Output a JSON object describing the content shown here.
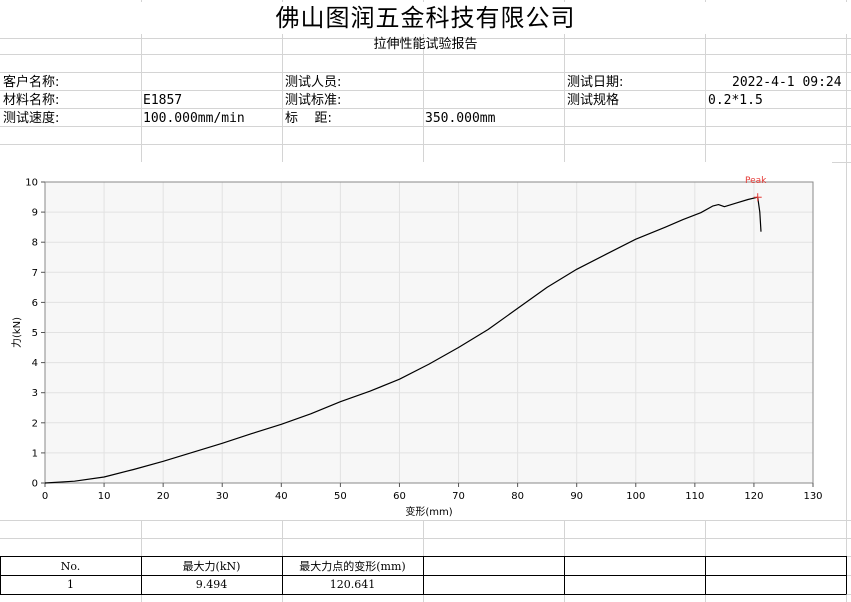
{
  "report": {
    "company_title": "佛山图润五金科技有限公司",
    "report_title": "拉伸性能试验报告"
  },
  "info": {
    "customer_label": "客户名称:",
    "customer_value": "",
    "tester_label": "测试人员:",
    "tester_value": "",
    "date_label": "测试日期:",
    "date_value": "2022-4-1 09:24",
    "material_label": "材料名称:",
    "material_value": "E1857",
    "standard_label": "测试标准:",
    "standard_value": "",
    "spec_label": "测试规格",
    "spec_value": "0.2*1.5",
    "speed_label": "测试速度:",
    "speed_value": "100.000mm/min",
    "gauge_label": "标    距:",
    "gauge_value": "350.000mm"
  },
  "chart_data": {
    "type": "line",
    "xlabel": "变形(mm)",
    "ylabel": "力(kN)",
    "xlim": [
      0,
      130
    ],
    "ylim": [
      0,
      10
    ],
    "xticks": [
      0,
      10,
      20,
      30,
      40,
      50,
      60,
      70,
      80,
      90,
      100,
      110,
      120,
      130
    ],
    "yticks": [
      0,
      1,
      2,
      3,
      4,
      5,
      6,
      7,
      8,
      9,
      10
    ],
    "grid": true,
    "line_color": "#000000",
    "peak_label": "Peak",
    "peak_color": "#e53935",
    "peak": {
      "x": 120.641,
      "y": 9.494
    },
    "series": [
      {
        "x": [
          0,
          5,
          10,
          15,
          20,
          25,
          30,
          35,
          40,
          45,
          50,
          55,
          60,
          65,
          70,
          75,
          80,
          85,
          90,
          95,
          100,
          105,
          108,
          111,
          113,
          114,
          115,
          117,
          119,
          120.641,
          121,
          121.2
        ],
        "y": [
          0.0,
          0.06,
          0.2,
          0.45,
          0.72,
          1.02,
          1.32,
          1.64,
          1.95,
          2.3,
          2.7,
          3.05,
          3.45,
          3.95,
          4.5,
          5.1,
          5.8,
          6.5,
          7.1,
          7.6,
          8.1,
          8.5,
          8.75,
          8.98,
          9.2,
          9.25,
          9.18,
          9.3,
          9.42,
          9.494,
          9.0,
          8.35
        ]
      }
    ]
  },
  "table": {
    "headers": [
      "No.",
      "最大力(kN)",
      "最大力点的变形(mm)"
    ],
    "rows": [
      [
        "1",
        "9.494",
        "120.641"
      ]
    ]
  }
}
